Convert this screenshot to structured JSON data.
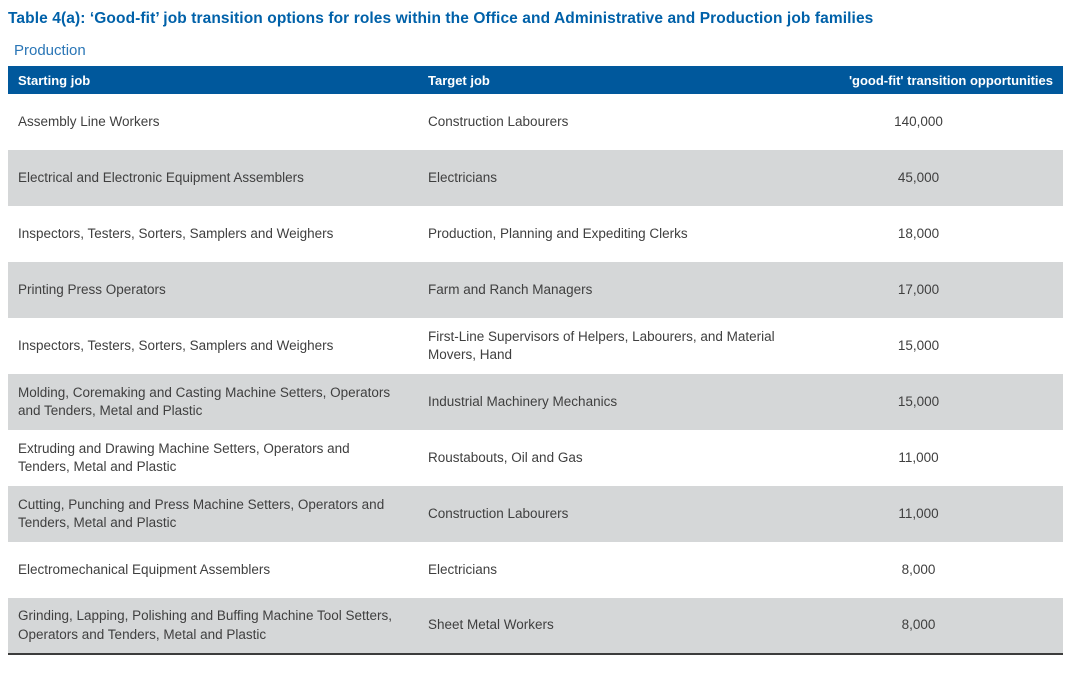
{
  "title": "Table 4(a): ‘Good-fit’ job transition options for roles within the Office and Administrative and Production job families",
  "section_label": "Production",
  "colors": {
    "header_bg": "#00589c",
    "title_blue": "#0061a9",
    "section_blue": "#2a76b6",
    "alt_row_bg": "#d5d7d8",
    "body_text": "#3f3f3f"
  },
  "table": {
    "headers": [
      "Starting job",
      "Target job",
      "'good-fit' transition opportunities"
    ],
    "rows": [
      {
        "starting_job": "Assembly Line Workers",
        "target_job": "Construction Labourers",
        "opportunities": "140,000"
      },
      {
        "starting_job": "Electrical and Electronic Equipment Assemblers",
        "target_job": "Electricians",
        "opportunities": "45,000"
      },
      {
        "starting_job": "Inspectors, Testers, Sorters, Samplers and Weighers",
        "target_job": "Production, Planning and Expediting Clerks",
        "opportunities": "18,000"
      },
      {
        "starting_job": "Printing Press Operators",
        "target_job": "Farm and Ranch Managers",
        "opportunities": "17,000"
      },
      {
        "starting_job": "Inspectors, Testers, Sorters, Samplers and Weighers",
        "target_job": "First-Line Supervisors of Helpers, Labourers, and Material Movers, Hand",
        "opportunities": "15,000"
      },
      {
        "starting_job": "Molding, Coremaking and Casting Machine Setters, Operators and Tenders, Metal and Plastic",
        "target_job": "Industrial Machinery Mechanics",
        "opportunities": "15,000"
      },
      {
        "starting_job": "Extruding and Drawing Machine Setters, Operators and Tenders, Metal and Plastic",
        "target_job": "Roustabouts, Oil and Gas",
        "opportunities": "11,000"
      },
      {
        "starting_job": "Cutting, Punching and Press Machine Setters, Operators and Tenders, Metal and Plastic",
        "target_job": "Construction Labourers",
        "opportunities": "11,000"
      },
      {
        "starting_job": "Electromechanical Equipment Assemblers",
        "target_job": "Electricians",
        "opportunities": "8,000"
      },
      {
        "starting_job": "Grinding, Lapping, Polishing and Buffing Machine Tool Setters, Operators and Tenders, Metal and Plastic",
        "target_job": "Sheet Metal Workers",
        "opportunities": "8,000"
      }
    ]
  }
}
